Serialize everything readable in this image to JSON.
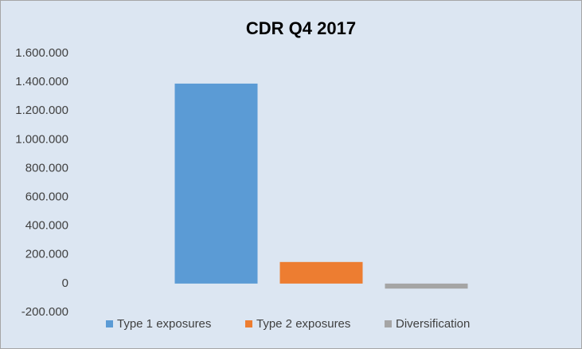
{
  "chart_data": {
    "type": "bar",
    "title": "CDR Q4 2017",
    "categories": [
      null
    ],
    "series": [
      {
        "name": "Type 1 exposures",
        "color": "#5b9bd5",
        "values": [
          1390000
        ]
      },
      {
        "name": "Type 2 exposures",
        "color": "#ed7d31",
        "values": [
          150000
        ]
      },
      {
        "name": "Diversification",
        "color": "#a5a5a5",
        "values": [
          -35000
        ]
      }
    ],
    "ylim": [
      -200000,
      1600000
    ],
    "yticks": [
      {
        "value": -200000,
        "label": "-200.000"
      },
      0,
      {
        "value": 200000,
        "label": "200.000"
      },
      {
        "value": 400000,
        "label": "400.000"
      },
      {
        "value": 600000,
        "label": "600.000"
      },
      {
        "value": 800000,
        "label": "800.000"
      },
      {
        "value": 1000000,
        "label": "1.000.000"
      },
      {
        "value": 1200000,
        "label": "1.200.000"
      },
      {
        "value": 1400000,
        "label": "1.400.000"
      },
      {
        "value": 1600000,
        "label": "1.600.000"
      }
    ],
    "grid": false,
    "legend": "bottom"
  }
}
